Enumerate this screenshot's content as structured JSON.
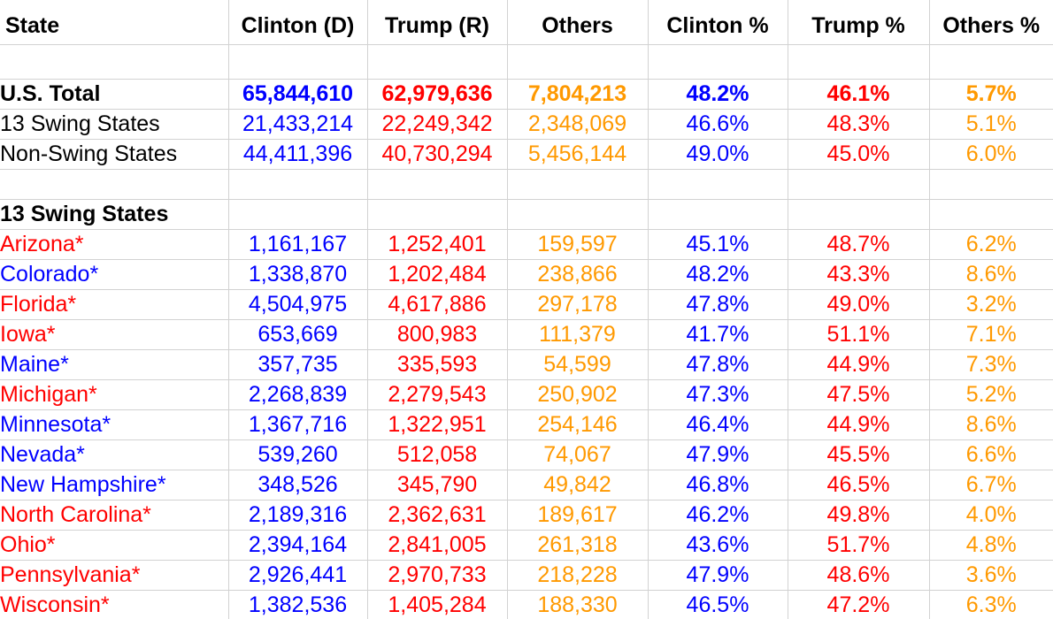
{
  "table": {
    "colors": {
      "clinton": "#0000ff",
      "trump": "#ff0000",
      "others": "#ff9900",
      "default": "#000000",
      "gridline": "#d2d2d2",
      "background": "#ffffff"
    },
    "columns": [
      {
        "label": "State"
      },
      {
        "label": "Clinton (D)"
      },
      {
        "label": "Trump (R)"
      },
      {
        "label": "Others"
      },
      {
        "label": "Clinton %"
      },
      {
        "label": "Trump %"
      },
      {
        "label": "Others %"
      }
    ],
    "value_colors": [
      "clinton",
      "trump",
      "others",
      "clinton",
      "trump",
      "others"
    ],
    "rows": [
      {
        "type": "spacer",
        "label": "",
        "values": [
          "",
          "",
          "",
          "",
          "",
          ""
        ]
      },
      {
        "type": "data",
        "label": "U.S. Total",
        "label_color": "default",
        "bold": true,
        "values": [
          "65,844,610",
          "62,979,636",
          "7,804,213",
          "48.2%",
          "46.1%",
          "5.7%"
        ]
      },
      {
        "type": "data",
        "label": "13 Swing States",
        "label_color": "default",
        "bold": false,
        "values": [
          "21,433,214",
          "22,249,342",
          "2,348,069",
          "46.6%",
          "48.3%",
          "5.1%"
        ]
      },
      {
        "type": "data",
        "label": "Non-Swing States",
        "label_color": "default",
        "bold": false,
        "values": [
          "44,411,396",
          "40,730,294",
          "5,456,144",
          "49.0%",
          "45.0%",
          "6.0%"
        ]
      },
      {
        "type": "spacer",
        "label": "",
        "values": [
          "",
          "",
          "",
          "",
          "",
          ""
        ]
      },
      {
        "type": "section",
        "label": "13 Swing States",
        "label_color": "default",
        "bold": true,
        "values": [
          "",
          "",
          "",
          "",
          "",
          ""
        ]
      },
      {
        "type": "data",
        "label": "Arizona*",
        "label_color": "trump",
        "bold": false,
        "values": [
          "1,161,167",
          "1,252,401",
          "159,597",
          "45.1%",
          "48.7%",
          "6.2%"
        ]
      },
      {
        "type": "data",
        "label": "Colorado*",
        "label_color": "clinton",
        "bold": false,
        "values": [
          "1,338,870",
          "1,202,484",
          "238,866",
          "48.2%",
          "43.3%",
          "8.6%"
        ]
      },
      {
        "type": "data",
        "label": "Florida*",
        "label_color": "trump",
        "bold": false,
        "values": [
          "4,504,975",
          "4,617,886",
          "297,178",
          "47.8%",
          "49.0%",
          "3.2%"
        ]
      },
      {
        "type": "data",
        "label": "Iowa*",
        "label_color": "trump",
        "bold": false,
        "values": [
          "653,669",
          "800,983",
          "111,379",
          "41.7%",
          "51.1%",
          "7.1%"
        ]
      },
      {
        "type": "data",
        "label": "Maine*",
        "label_color": "clinton",
        "bold": false,
        "values": [
          "357,735",
          "335,593",
          "54,599",
          "47.8%",
          "44.9%",
          "7.3%"
        ]
      },
      {
        "type": "data",
        "label": "Michigan*",
        "label_color": "trump",
        "bold": false,
        "values": [
          "2,268,839",
          "2,279,543",
          "250,902",
          "47.3%",
          "47.5%",
          "5.2%"
        ]
      },
      {
        "type": "data",
        "label": "Minnesota*",
        "label_color": "clinton",
        "bold": false,
        "values": [
          "1,367,716",
          "1,322,951",
          "254,146",
          "46.4%",
          "44.9%",
          "8.6%"
        ]
      },
      {
        "type": "data",
        "label": "Nevada*",
        "label_color": "clinton",
        "bold": false,
        "values": [
          "539,260",
          "512,058",
          "74,067",
          "47.9%",
          "45.5%",
          "6.6%"
        ]
      },
      {
        "type": "data",
        "label": "New Hampshire*",
        "label_color": "clinton",
        "bold": false,
        "values": [
          "348,526",
          "345,790",
          "49,842",
          "46.8%",
          "46.5%",
          "6.7%"
        ]
      },
      {
        "type": "data",
        "label": "North Carolina*",
        "label_color": "trump",
        "bold": false,
        "values": [
          "2,189,316",
          "2,362,631",
          "189,617",
          "46.2%",
          "49.8%",
          "4.0%"
        ]
      },
      {
        "type": "data",
        "label": "Ohio*",
        "label_color": "trump",
        "bold": false,
        "values": [
          "2,394,164",
          "2,841,005",
          "261,318",
          "43.6%",
          "51.7%",
          "4.8%"
        ]
      },
      {
        "type": "data",
        "label": "Pennsylvania*",
        "label_color": "trump",
        "bold": false,
        "values": [
          "2,926,441",
          "2,970,733",
          "218,228",
          "47.9%",
          "48.6%",
          "3.6%"
        ]
      },
      {
        "type": "data",
        "label": "Wisconsin*",
        "label_color": "trump",
        "bold": false,
        "values": [
          "1,382,536",
          "1,405,284",
          "188,330",
          "46.5%",
          "47.2%",
          "6.3%"
        ]
      }
    ]
  }
}
